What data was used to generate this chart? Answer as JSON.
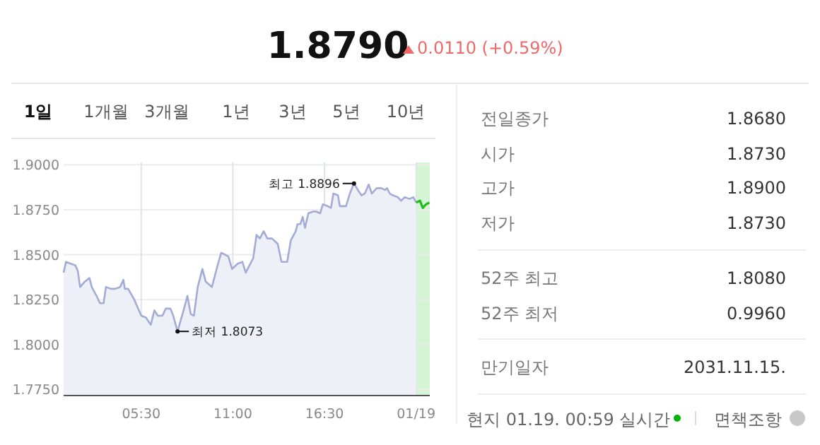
{
  "chart_data": [
    {
      "type": "other",
      "annotations": [
        "1.8790",
        "0.0110 (+0.59%)",
        "1일",
        "1개월",
        "3개월",
        "1년",
        "3년",
        "5년",
        "10년"
      ]
    },
    {
      "type": "area",
      "xlim": [
        0.84,
        22.82
      ],
      "ylim": [
        1.7716,
        1.9013
      ],
      "xticks": [
        {
          "value": 5.5,
          "label": "05:30"
        },
        {
          "value": 11,
          "label": "11:00"
        },
        {
          "value": 16.5,
          "label": "16:30"
        },
        {
          "value": 22,
          "label": "01/19"
        }
      ],
      "yticks": [
        {
          "value": 1.775,
          "label": "1.7750"
        },
        {
          "value": 1.8,
          "label": "1.8000"
        },
        {
          "value": 1.825,
          "label": "1.8250"
        },
        {
          "value": 1.85,
          "label": "1.8500"
        },
        {
          "value": 1.875,
          "label": "1.8750"
        },
        {
          "value": 1.9,
          "label": "1.9000"
        }
      ],
      "grid": true,
      "series": [
        {
          "type": "area",
          "color": "#a3abd6",
          "x": [
            0.84,
            0.98,
            1.26,
            1.55,
            1.69,
            1.83,
            2.11,
            2.39,
            2.53,
            2.82,
            3.02,
            3.24,
            3.38,
            3.66,
            3.95,
            4.23,
            4.43,
            4.51,
            4.71,
            5.08,
            5.5,
            5.78,
            6.07,
            6.29,
            6.49,
            6.77,
            6.97,
            7.25,
            7.42,
            7.68,
            8.04,
            8.27,
            8.47,
            8.66,
            8.89,
            9.17,
            9.37,
            9.74,
            10.08,
            10.3,
            10.53,
            10.73,
            10.95,
            11.29,
            11.57,
            11.77,
            12.22,
            12.42,
            12.62,
            12.85,
            13.07,
            13.35,
            13.69,
            13.92,
            14.26,
            14.48,
            14.77,
            14.88,
            15.05,
            15.19,
            15.33,
            15.53,
            15.81,
            16.01,
            16.24,
            16.4,
            16.69,
            16.89,
            17.03,
            17.31,
            17.42,
            17.79,
            18.02,
            18.27,
            18.5,
            18.72,
            18.92,
            19.15,
            19.34,
            19.63,
            19.91,
            20.13,
            20.25,
            20.42,
            20.61,
            20.9,
            21.09,
            21.32,
            21.6,
            21.83,
            22.0
          ],
          "values": [
            1.84,
            1.846,
            1.845,
            1.844,
            1.841,
            1.832,
            1.835,
            1.837,
            1.832,
            1.827,
            1.823,
            1.823,
            1.832,
            1.831,
            1.831,
            1.832,
            1.836,
            1.831,
            1.831,
            1.825,
            1.816,
            1.815,
            1.811,
            1.819,
            1.816,
            1.816,
            1.82,
            1.82,
            1.816,
            1.8073,
            1.819,
            1.827,
            1.817,
            1.816,
            1.832,
            1.842,
            1.835,
            1.832,
            1.844,
            1.851,
            1.85,
            1.849,
            1.842,
            1.845,
            1.846,
            1.84,
            1.848,
            1.861,
            1.859,
            1.863,
            1.859,
            1.859,
            1.856,
            1.846,
            1.846,
            1.858,
            1.863,
            1.867,
            1.867,
            1.871,
            1.865,
            1.873,
            1.874,
            1.874,
            1.873,
            1.878,
            1.877,
            1.876,
            1.884,
            1.883,
            1.877,
            1.877,
            1.884,
            1.8896,
            1.886,
            1.883,
            1.884,
            1.889,
            1.884,
            1.887,
            1.887,
            1.886,
            1.887,
            1.884,
            1.883,
            1.882,
            1.88,
            1.882,
            1.881,
            1.882,
            1.879
          ]
        },
        {
          "type": "line",
          "color": "#22bb22",
          "x": [
            22.0,
            22.23,
            22.4,
            22.59,
            22.79
          ],
          "values": [
            1.879,
            1.88,
            1.876,
            1.878,
            1.879
          ]
        }
      ],
      "bands": [
        {
          "axis": "x",
          "from": 22.0,
          "to": 22.82,
          "color": "#d4f4d4"
        }
      ],
      "annotations": [
        {
          "text": "최고 1.8896",
          "x": 18.27,
          "y": 1.8896
        },
        {
          "text": "최저 1.8073",
          "x": 7.68,
          "y": 1.8073
        }
      ]
    },
    {
      "type": "other",
      "annotations": [
        "전일종가",
        "1.8680",
        "시가",
        "1.8730",
        "고가",
        "1.8900",
        "저가",
        "1.8730",
        "52주 최고",
        "1.8080",
        "52주 최저",
        "0.9960",
        "만기일자",
        "2031.11.15.",
        "현지 01.19. 00:59 실시간",
        "면책조항"
      ]
    }
  ]
}
